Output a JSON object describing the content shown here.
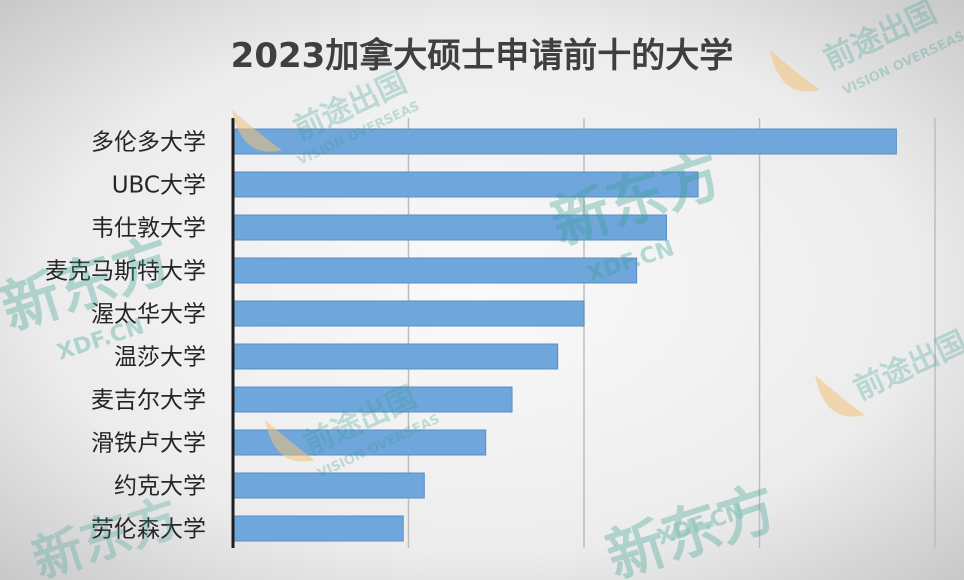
{
  "chart_data": {
    "type": "bar",
    "orientation": "horizontal",
    "title": "2023加拿大硕士申请前十的大学",
    "categories": [
      "多伦多大学",
      "UBC大学",
      "韦仕敦大学",
      "麦克马斯特大学",
      "渥太华大学",
      "温莎大学",
      "麦吉尔大学",
      "滑铁卢大学",
      "约克大学",
      "劳伦森大学"
    ],
    "values": [
      3780,
      2650,
      2470,
      2300,
      2000,
      1850,
      1590,
      1440,
      1090,
      970
    ],
    "xlim": [
      0,
      4000
    ],
    "grid": true,
    "legend": "none",
    "bar_color": "#6fa6db"
  },
  "watermarks": [
    {
      "text": "新东方",
      "color": "#3a9e8e"
    },
    {
      "text": "XDF.CN",
      "color": "#3a9e8e"
    },
    {
      "text": "前途出国",
      "color": "#3a9e8e"
    },
    {
      "text": "VISION OVERSEAS",
      "color": "#3a9e8e"
    }
  ]
}
